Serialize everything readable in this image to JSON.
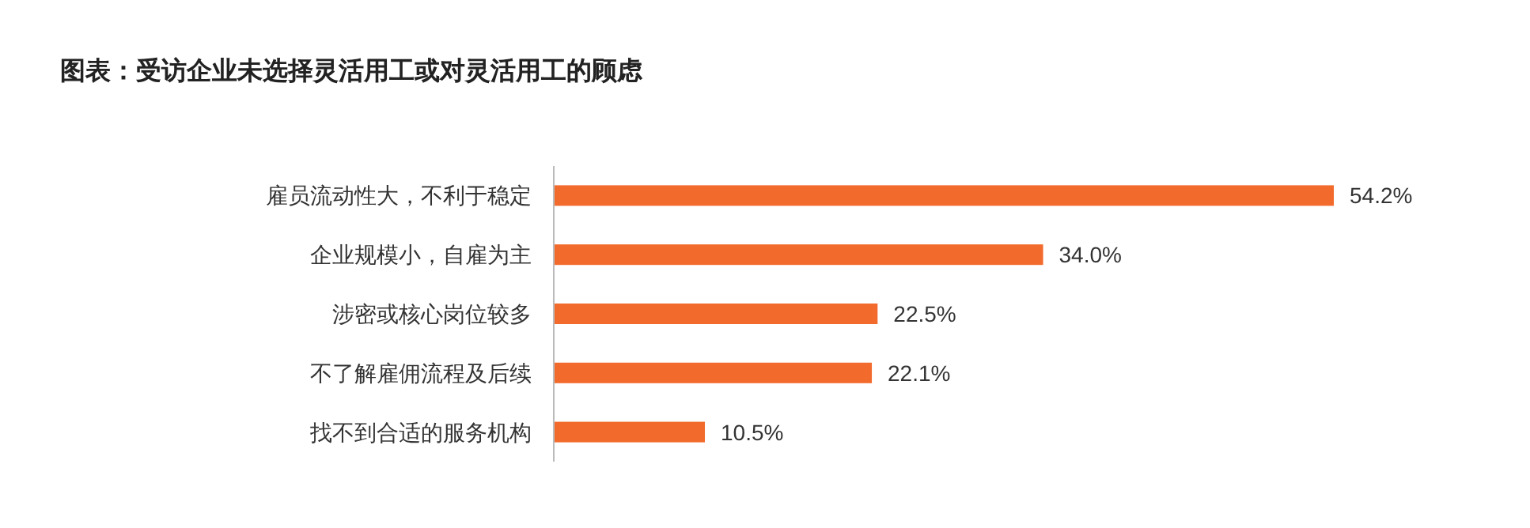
{
  "chart_data": {
    "type": "bar",
    "orientation": "horizontal",
    "title": "图表：受访企业未选择灵活用工或对灵活用工的顾虑",
    "categories": [
      "雇员流动性大，不利于稳定",
      "企业规模小，自雇为主",
      "涉密或核心岗位较多",
      "不了解雇佣流程及后续",
      "找不到合适的服务机构"
    ],
    "values": [
      54.2,
      34.0,
      22.5,
      22.1,
      10.5
    ],
    "value_labels": [
      "54.2%",
      "34.0%",
      "22.5%",
      "22.1%",
      "10.5%"
    ],
    "color": "#f26a2c"
  }
}
